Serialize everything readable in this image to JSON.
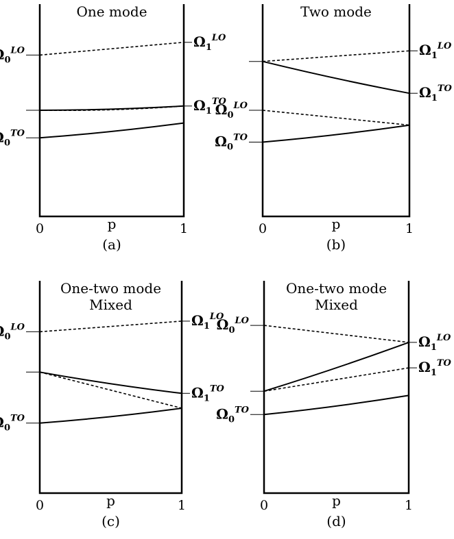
{
  "x_axis": {
    "label": "p",
    "tick_min": "0",
    "tick_max": "1"
  },
  "symbol": {
    "base": "Ω",
    "sub_0": "0",
    "sub_1": "1",
    "lo": "LO",
    "to": "TO"
  },
  "panels": [
    {
      "id": "a",
      "title": [
        "One mode"
      ],
      "caption": "(a)",
      "labels_left": [
        "LO",
        "",
        "TO"
      ],
      "labels_right": [
        "LO",
        "TO"
      ],
      "curves": [
        {
          "style": "dashed",
          "y0": 0.76,
          "y1": 0.82
        },
        {
          "style": "solid",
          "y0": 0.5,
          "y1": 0.52
        },
        {
          "style": "dashed",
          "y0": 0.5,
          "y1": 0.52,
          "sag": -0.015
        },
        {
          "style": "solid",
          "y0": 0.37,
          "y1": 0.44
        }
      ]
    },
    {
      "id": "b",
      "title": [
        "Two mode"
      ],
      "caption": "(b)",
      "labels_left": [
        "",
        "LO",
        "TO"
      ],
      "labels_right": [
        "LO",
        "TO"
      ],
      "curves": [
        {
          "style": "dashed",
          "y0": 0.73,
          "y1": 0.78
        },
        {
          "style": "solid",
          "y0": 0.73,
          "y1": 0.58
        },
        {
          "style": "dashed",
          "y0": 0.5,
          "y1": 0.43
        },
        {
          "style": "solid",
          "y0": 0.35,
          "y1": 0.43
        }
      ]
    },
    {
      "id": "c",
      "title": [
        "One-two mode",
        "Mixed"
      ],
      "caption": "(c)",
      "labels_left": [
        "LO",
        "",
        "TO"
      ],
      "labels_right": [
        "LO",
        "TO"
      ],
      "curves": [
        {
          "style": "dashed",
          "y0": 0.76,
          "y1": 0.81
        },
        {
          "style": "solid",
          "y0": 0.57,
          "y1": 0.47
        },
        {
          "style": "dashed",
          "y0": 0.57,
          "y1": 0.4
        },
        {
          "style": "solid",
          "y0": 0.33,
          "y1": 0.4
        }
      ]
    },
    {
      "id": "d",
      "title": [
        "One-two mode",
        "Mixed"
      ],
      "caption": "(d)",
      "labels_left": [
        "LO",
        "",
        "TO"
      ],
      "labels_right": [
        "LO",
        "TO"
      ],
      "curves": [
        {
          "style": "dashed",
          "y0": 0.79,
          "y1": 0.71
        },
        {
          "style": "solid",
          "y0": 0.48,
          "y1": 0.71
        },
        {
          "style": "dashed",
          "y0": 0.48,
          "y1": 0.59
        },
        {
          "style": "solid",
          "y0": 0.37,
          "y1": 0.46
        }
      ]
    }
  ]
}
